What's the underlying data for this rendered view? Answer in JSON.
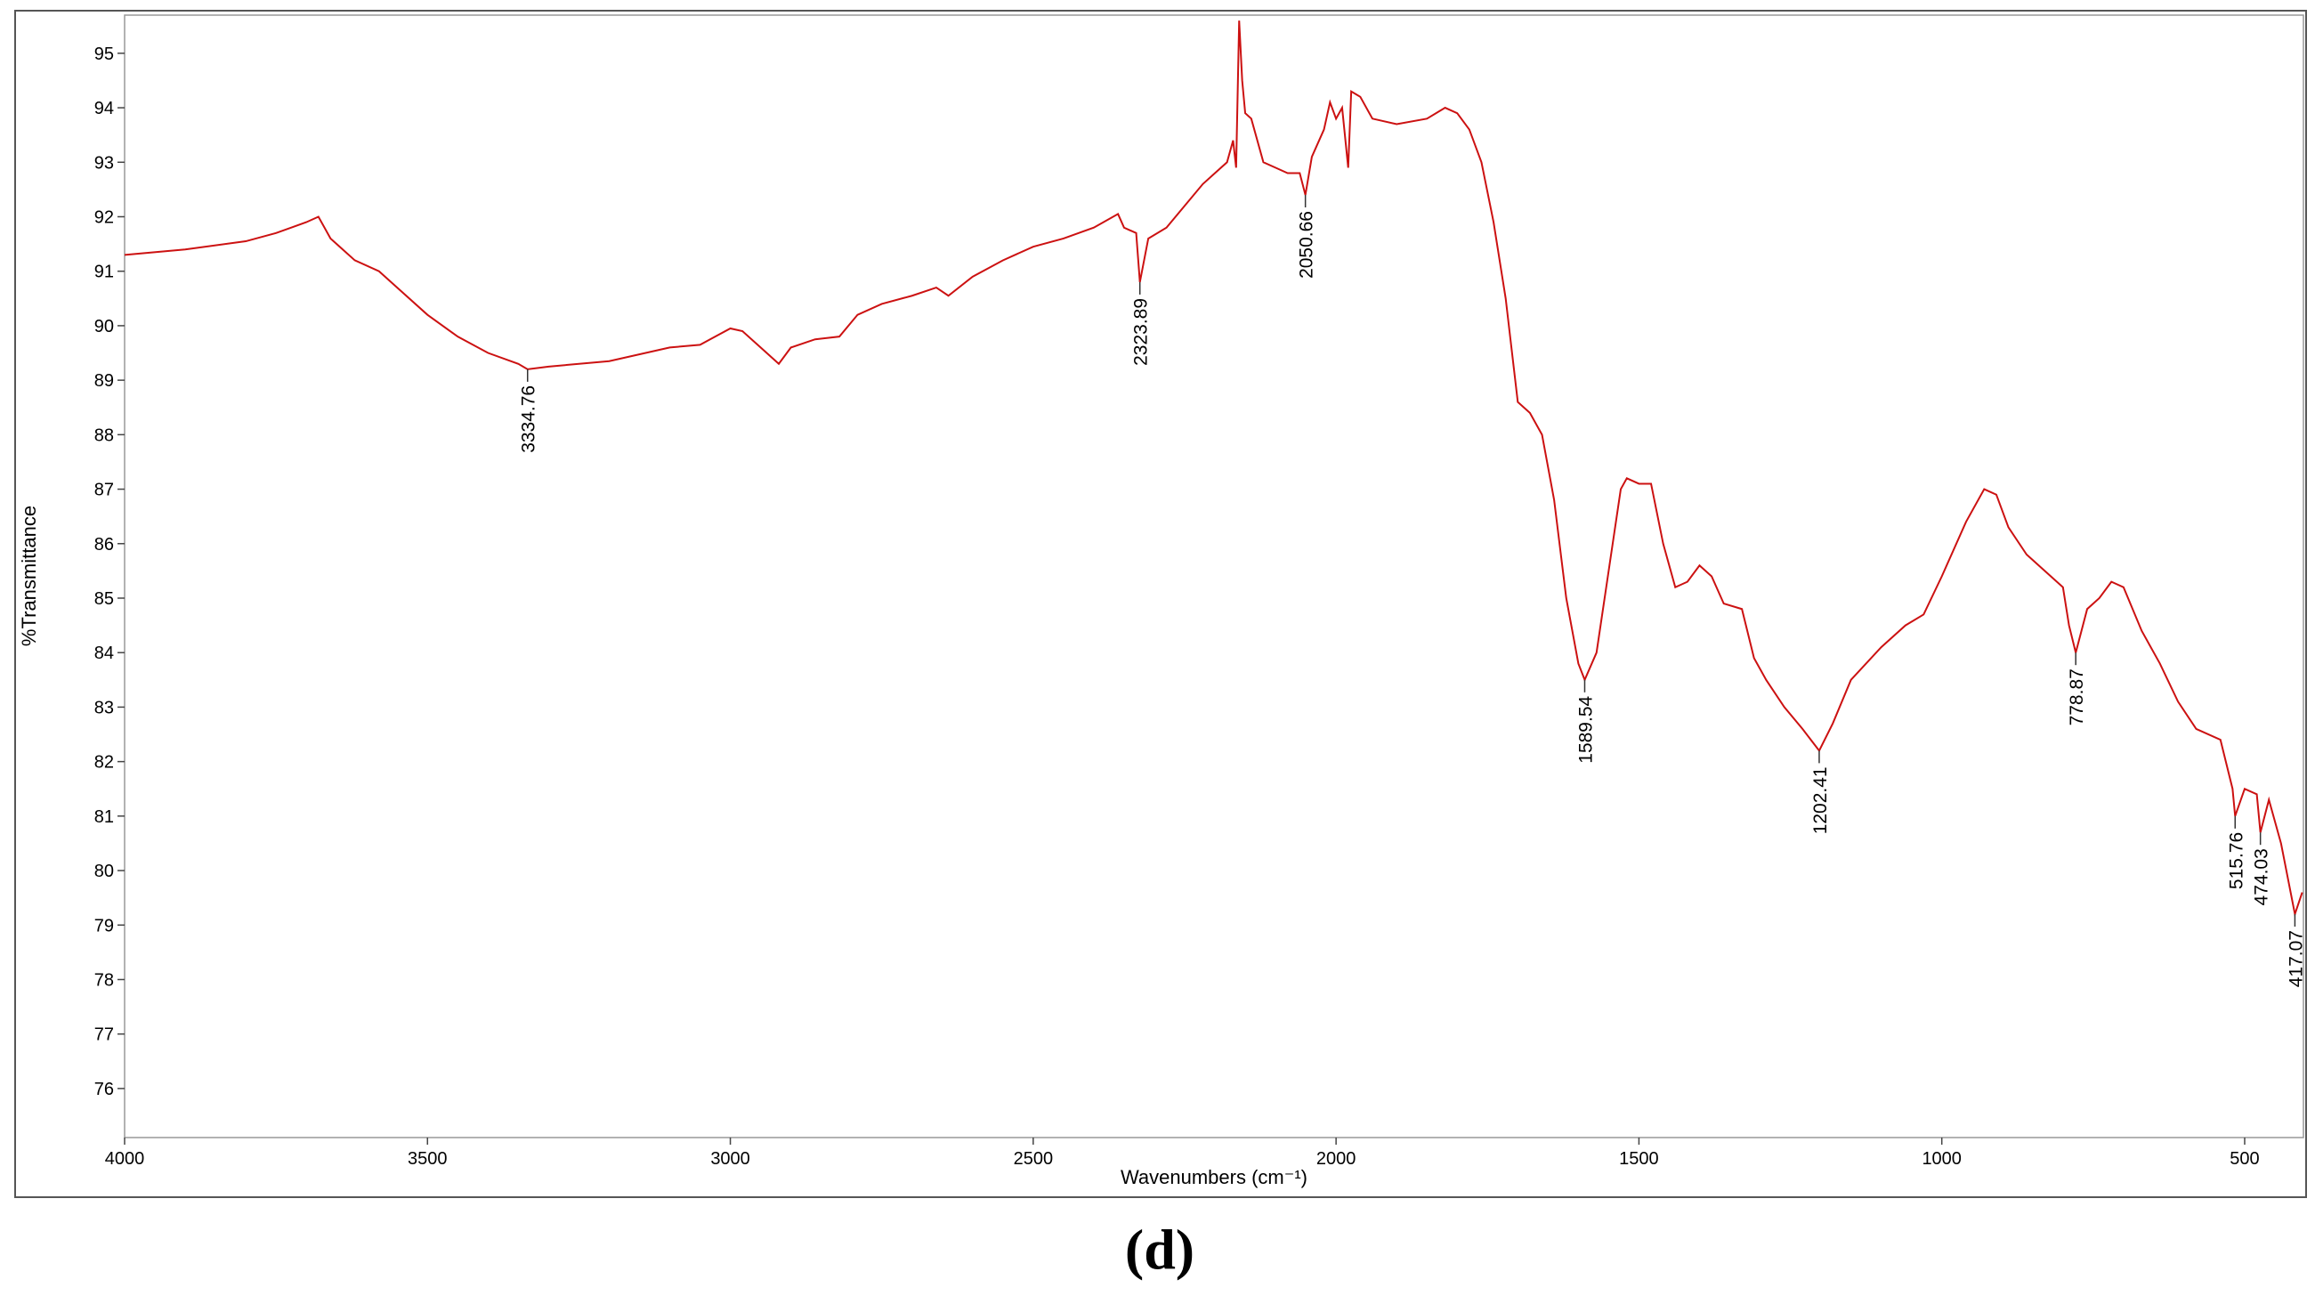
{
  "chart_data": {
    "type": "line",
    "caption": "(d)",
    "x_label": "Wavenumbers (cm⁻¹)",
    "y_label": "%Transmittance",
    "xlim": [
      4000,
      403
    ],
    "ylim": [
      75.1,
      95.7
    ],
    "xticks": [
      4000,
      3500,
      3000,
      2500,
      2000,
      1500,
      1000,
      500
    ],
    "yticks": [
      76,
      77,
      78,
      79,
      80,
      81,
      82,
      83,
      84,
      85,
      86,
      87,
      88,
      89,
      90,
      91,
      92,
      93,
      94,
      95
    ],
    "x": [
      4000,
      3900,
      3800,
      3750,
      3700,
      3680,
      3660,
      3620,
      3580,
      3550,
      3500,
      3450,
      3400,
      3350,
      3334.76,
      3300,
      3200,
      3100,
      3050,
      3000,
      2980,
      2950,
      2920,
      2900,
      2860,
      2820,
      2790,
      2750,
      2700,
      2660,
      2640,
      2600,
      2550,
      2500,
      2450,
      2400,
      2360,
      2350,
      2330,
      2323.89,
      2310,
      2280,
      2250,
      2220,
      2200,
      2180,
      2170,
      2165,
      2160,
      2155,
      2150,
      2140,
      2120,
      2100,
      2080,
      2060,
      2050.66,
      2040,
      2020,
      2010,
      2000,
      1990,
      1980,
      1975,
      1960,
      1940,
      1900,
      1850,
      1820,
      1800,
      1780,
      1760,
      1740,
      1720,
      1700,
      1680,
      1660,
      1640,
      1620,
      1600,
      1589.54,
      1570,
      1550,
      1530,
      1520,
      1500,
      1480,
      1460,
      1440,
      1420,
      1400,
      1380,
      1360,
      1330,
      1310,
      1290,
      1260,
      1230,
      1202.41,
      1180,
      1150,
      1100,
      1060,
      1030,
      1000,
      960,
      930,
      910,
      890,
      860,
      830,
      800,
      790,
      778.87,
      760,
      740,
      720,
      700,
      670,
      640,
      610,
      580,
      540,
      520,
      515.76,
      500,
      480,
      474.03,
      460,
      440,
      417.07,
      405
    ],
    "series": [
      {
        "name": "spectrum",
        "color": "#cc1111",
        "values": [
          91.3,
          91.4,
          91.55,
          91.7,
          91.9,
          92.0,
          91.6,
          91.2,
          91.0,
          90.7,
          90.2,
          89.8,
          89.5,
          89.3,
          89.2,
          89.25,
          89.35,
          89.6,
          89.65,
          89.95,
          89.9,
          89.6,
          89.3,
          89.6,
          89.75,
          89.8,
          90.2,
          90.4,
          90.55,
          90.7,
          90.55,
          90.9,
          91.2,
          91.45,
          91.6,
          91.8,
          92.05,
          91.8,
          91.7,
          90.8,
          91.6,
          91.8,
          92.2,
          92.6,
          92.8,
          93.0,
          93.4,
          92.9,
          95.6,
          94.5,
          93.9,
          93.8,
          93.0,
          92.9,
          92.8,
          92.8,
          92.4,
          93.1,
          93.6,
          94.1,
          93.8,
          94.0,
          92.9,
          94.3,
          94.2,
          93.8,
          93.7,
          93.8,
          94.0,
          93.9,
          93.6,
          93.0,
          91.9,
          90.5,
          88.6,
          88.4,
          88.0,
          86.8,
          85.0,
          83.8,
          83.5,
          84.0,
          85.5,
          87.0,
          87.2,
          87.1,
          87.1,
          86.0,
          85.2,
          85.3,
          85.6,
          85.4,
          84.9,
          84.8,
          83.9,
          83.5,
          83.0,
          82.6,
          82.2,
          82.7,
          83.5,
          84.1,
          84.5,
          84.7,
          85.4,
          86.4,
          87.0,
          86.9,
          86.3,
          85.8,
          85.5,
          85.2,
          84.5,
          84.0,
          84.8,
          85.0,
          85.3,
          85.2,
          84.4,
          83.8,
          83.1,
          82.6,
          82.4,
          81.5,
          81.0,
          81.5,
          81.4,
          80.7,
          81.3,
          80.5,
          79.2,
          79.6
        ]
      }
    ],
    "peak_labels": [
      3334.76,
      2323.89,
      2050.66,
      1589.54,
      1202.41,
      778.87,
      515.76,
      474.03,
      417.07
    ]
  }
}
